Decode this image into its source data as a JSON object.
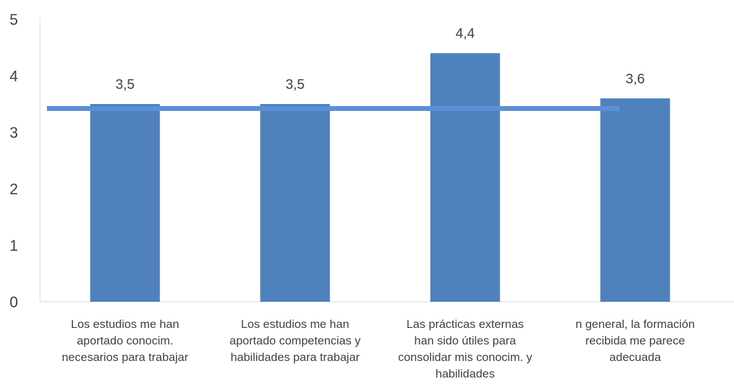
{
  "chart_data": {
    "type": "bar",
    "categories": [
      [
        "Los estudios me han",
        "aportado conocim.",
        "necesarios para trabajar"
      ],
      [
        "Los estudios me han",
        "aportado competencias y",
        "habilidades  para trabajar"
      ],
      [
        "Las prácticas externas",
        "han sido útiles para",
        "consolidar mis conocim. y",
        "habilidades"
      ],
      [
        "n general, la formación",
        "recibida me parece",
        "adecuada"
      ]
    ],
    "values": [
      3.5,
      3.5,
      4.4,
      3.6
    ],
    "value_labels": [
      "3,5",
      "3,5",
      "4,4",
      "3,6"
    ],
    "reference_line": 3.42,
    "ylim": [
      0,
      5
    ],
    "yticks": [
      0,
      1,
      2,
      3,
      4,
      5
    ],
    "bar_color": "#4F81BD",
    "line_color": "#5B8FD6",
    "grid": false,
    "legend": "none"
  }
}
